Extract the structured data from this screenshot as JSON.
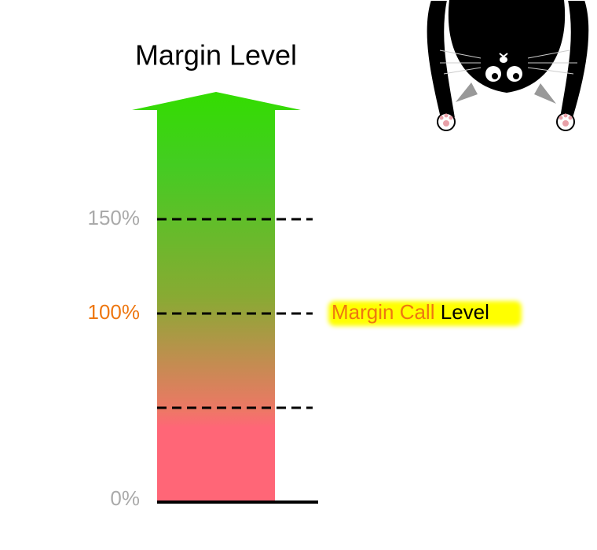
{
  "title": "Margin Level",
  "levels": [
    "150%",
    "100%",
    "0%"
  ],
  "callout": {
    "highlight": "Margin Call",
    "rest": "Level"
  }
}
